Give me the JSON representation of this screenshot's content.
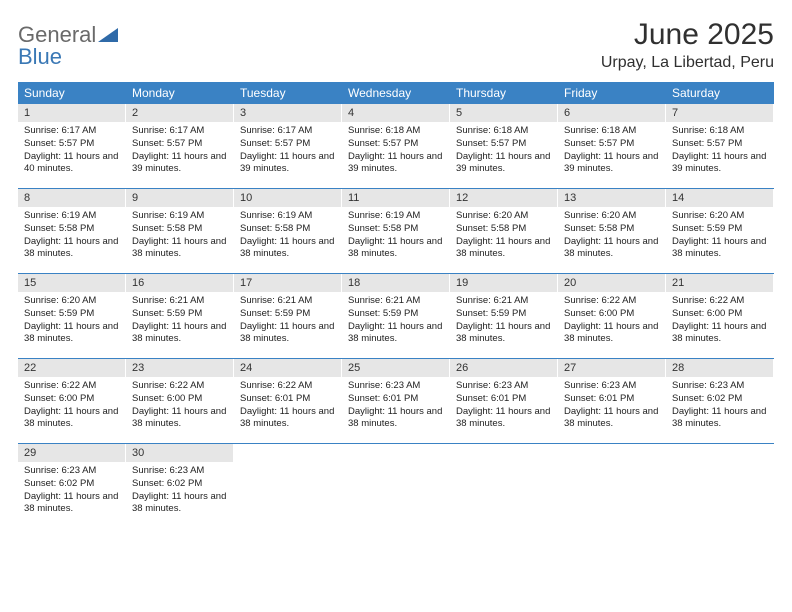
{
  "logo": {
    "text1": "General",
    "text2": "Blue",
    "color1": "#6a6a6a",
    "color2": "#3a78b5",
    "tri_color": "#2f6aa8"
  },
  "title": "June 2025",
  "location": "Urpay, La Libertad, Peru",
  "colors": {
    "header_bg": "#3a82c4",
    "header_fg": "#ffffff",
    "daynum_bg": "#e6e6e6",
    "week_divider": "#3a82c4",
    "page_bg": "#ffffff"
  },
  "fonts": {
    "title_size": 30,
    "location_size": 16,
    "weekday_size": 12,
    "daynum_size": 11,
    "body_size": 9.5
  },
  "layout": {
    "cols": 7,
    "rows": 5,
    "cell_min_height": 84
  },
  "weekdays": [
    "Sunday",
    "Monday",
    "Tuesday",
    "Wednesday",
    "Thursday",
    "Friday",
    "Saturday"
  ],
  "labels": {
    "sunrise": "Sunrise: ",
    "sunset": "Sunset: ",
    "daylight": "Daylight: "
  },
  "days": [
    {
      "n": 1,
      "sunrise": "6:17 AM",
      "sunset": "5:57 PM",
      "daylight": "11 hours and 40 minutes."
    },
    {
      "n": 2,
      "sunrise": "6:17 AM",
      "sunset": "5:57 PM",
      "daylight": "11 hours and 39 minutes."
    },
    {
      "n": 3,
      "sunrise": "6:17 AM",
      "sunset": "5:57 PM",
      "daylight": "11 hours and 39 minutes."
    },
    {
      "n": 4,
      "sunrise": "6:18 AM",
      "sunset": "5:57 PM",
      "daylight": "11 hours and 39 minutes."
    },
    {
      "n": 5,
      "sunrise": "6:18 AM",
      "sunset": "5:57 PM",
      "daylight": "11 hours and 39 minutes."
    },
    {
      "n": 6,
      "sunrise": "6:18 AM",
      "sunset": "5:57 PM",
      "daylight": "11 hours and 39 minutes."
    },
    {
      "n": 7,
      "sunrise": "6:18 AM",
      "sunset": "5:57 PM",
      "daylight": "11 hours and 39 minutes."
    },
    {
      "n": 8,
      "sunrise": "6:19 AM",
      "sunset": "5:58 PM",
      "daylight": "11 hours and 38 minutes."
    },
    {
      "n": 9,
      "sunrise": "6:19 AM",
      "sunset": "5:58 PM",
      "daylight": "11 hours and 38 minutes."
    },
    {
      "n": 10,
      "sunrise": "6:19 AM",
      "sunset": "5:58 PM",
      "daylight": "11 hours and 38 minutes."
    },
    {
      "n": 11,
      "sunrise": "6:19 AM",
      "sunset": "5:58 PM",
      "daylight": "11 hours and 38 minutes."
    },
    {
      "n": 12,
      "sunrise": "6:20 AM",
      "sunset": "5:58 PM",
      "daylight": "11 hours and 38 minutes."
    },
    {
      "n": 13,
      "sunrise": "6:20 AM",
      "sunset": "5:58 PM",
      "daylight": "11 hours and 38 minutes."
    },
    {
      "n": 14,
      "sunrise": "6:20 AM",
      "sunset": "5:59 PM",
      "daylight": "11 hours and 38 minutes."
    },
    {
      "n": 15,
      "sunrise": "6:20 AM",
      "sunset": "5:59 PM",
      "daylight": "11 hours and 38 minutes."
    },
    {
      "n": 16,
      "sunrise": "6:21 AM",
      "sunset": "5:59 PM",
      "daylight": "11 hours and 38 minutes."
    },
    {
      "n": 17,
      "sunrise": "6:21 AM",
      "sunset": "5:59 PM",
      "daylight": "11 hours and 38 minutes."
    },
    {
      "n": 18,
      "sunrise": "6:21 AM",
      "sunset": "5:59 PM",
      "daylight": "11 hours and 38 minutes."
    },
    {
      "n": 19,
      "sunrise": "6:21 AM",
      "sunset": "5:59 PM",
      "daylight": "11 hours and 38 minutes."
    },
    {
      "n": 20,
      "sunrise": "6:22 AM",
      "sunset": "6:00 PM",
      "daylight": "11 hours and 38 minutes."
    },
    {
      "n": 21,
      "sunrise": "6:22 AM",
      "sunset": "6:00 PM",
      "daylight": "11 hours and 38 minutes."
    },
    {
      "n": 22,
      "sunrise": "6:22 AM",
      "sunset": "6:00 PM",
      "daylight": "11 hours and 38 minutes."
    },
    {
      "n": 23,
      "sunrise": "6:22 AM",
      "sunset": "6:00 PM",
      "daylight": "11 hours and 38 minutes."
    },
    {
      "n": 24,
      "sunrise": "6:22 AM",
      "sunset": "6:01 PM",
      "daylight": "11 hours and 38 minutes."
    },
    {
      "n": 25,
      "sunrise": "6:23 AM",
      "sunset": "6:01 PM",
      "daylight": "11 hours and 38 minutes."
    },
    {
      "n": 26,
      "sunrise": "6:23 AM",
      "sunset": "6:01 PM",
      "daylight": "11 hours and 38 minutes."
    },
    {
      "n": 27,
      "sunrise": "6:23 AM",
      "sunset": "6:01 PM",
      "daylight": "11 hours and 38 minutes."
    },
    {
      "n": 28,
      "sunrise": "6:23 AM",
      "sunset": "6:02 PM",
      "daylight": "11 hours and 38 minutes."
    },
    {
      "n": 29,
      "sunrise": "6:23 AM",
      "sunset": "6:02 PM",
      "daylight": "11 hours and 38 minutes."
    },
    {
      "n": 30,
      "sunrise": "6:23 AM",
      "sunset": "6:02 PM",
      "daylight": "11 hours and 38 minutes."
    }
  ],
  "start_weekday_index": 0,
  "total_cells": 35
}
